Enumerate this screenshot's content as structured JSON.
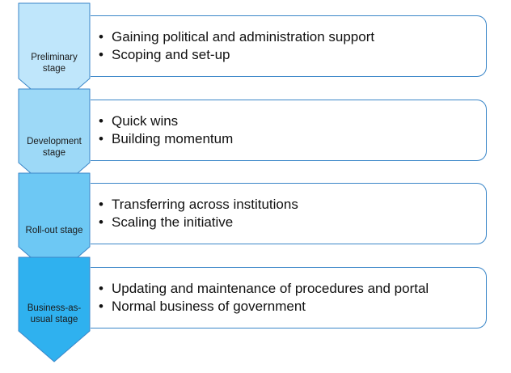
{
  "colors": {
    "stage_fills": [
      "#bfe6fb",
      "#9dd9f7",
      "#6dc8f4",
      "#2fb1ef"
    ],
    "stroke": "#3a86c8",
    "box_border": "#3a86c8"
  },
  "stages": [
    {
      "label": "Preliminary stage",
      "bullets": [
        "Gaining political and administration support",
        "Scoping and set-up"
      ]
    },
    {
      "label": "Development stage",
      "bullets": [
        "Quick wins",
        "Building momentum"
      ]
    },
    {
      "label": "Roll-out stage",
      "bullets": [
        "Transferring across institutions",
        "Scaling the initiative"
      ]
    },
    {
      "label": "Business-as-usual stage",
      "bullets": [
        "Updating and maintenance of procedures and portal",
        "Normal business of government"
      ]
    }
  ]
}
